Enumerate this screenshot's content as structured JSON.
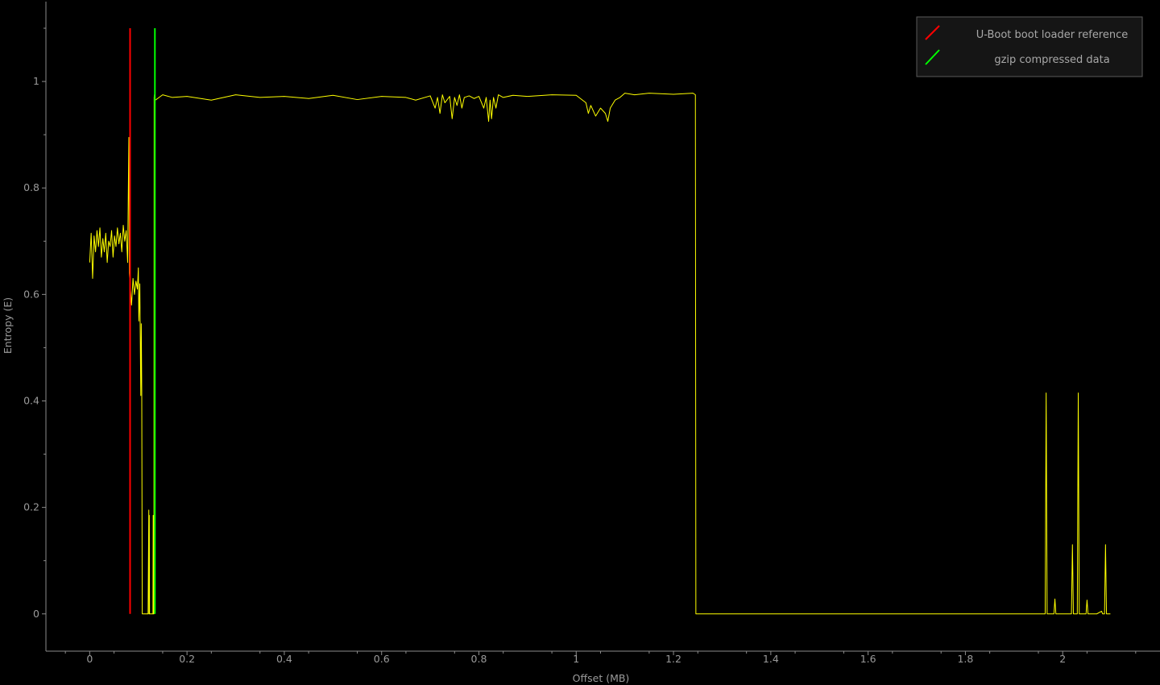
{
  "chart_data": {
    "type": "line",
    "title": "",
    "xlabel": "Offset (MB)",
    "ylabel": "Entropy (E)",
    "xlim": [
      -0.09,
      2.2
    ],
    "ylim": [
      -0.07,
      1.15
    ],
    "xticks": [
      0,
      0.2,
      0.4,
      0.6,
      0.8,
      1,
      1.2,
      1.4,
      1.6,
      1.8,
      2
    ],
    "xtick_labels": [
      "0",
      "0.2",
      "0.4",
      "0.6",
      "0.8",
      "1",
      "1.2",
      "1.4",
      "1.6",
      "1.8",
      "2"
    ],
    "yticks": [
      0,
      0.2,
      0.4,
      0.6,
      0.8,
      1
    ],
    "ytick_labels": [
      "0",
      "0.2",
      "0.4",
      "0.6",
      "0.8",
      "1"
    ],
    "legend_position": "top-right",
    "series": [
      {
        "name": "entropy",
        "color": "#ffff00",
        "x": [
          0,
          0.003,
          0.006,
          0.009,
          0.012,
          0.015,
          0.018,
          0.021,
          0.024,
          0.027,
          0.03,
          0.033,
          0.036,
          0.039,
          0.042,
          0.045,
          0.048,
          0.051,
          0.054,
          0.057,
          0.06,
          0.063,
          0.066,
          0.069,
          0.072,
          0.075,
          0.078,
          0.0805,
          0.0815,
          0.083,
          0.086,
          0.089,
          0.092,
          0.095,
          0.098,
          0.1,
          0.101,
          0.103,
          0.105,
          0.106,
          0.107,
          0.108,
          0.115,
          0.12,
          0.1215,
          0.122,
          0.1225,
          0.123,
          0.13,
          0.1305,
          0.131,
          0.132,
          0.1325,
          0.133,
          0.135,
          0.15,
          0.17,
          0.2,
          0.25,
          0.3,
          0.35,
          0.4,
          0.45,
          0.5,
          0.55,
          0.6,
          0.65,
          0.67,
          0.7,
          0.71,
          0.715,
          0.72,
          0.725,
          0.73,
          0.74,
          0.745,
          0.75,
          0.755,
          0.76,
          0.765,
          0.77,
          0.78,
          0.79,
          0.8,
          0.81,
          0.815,
          0.82,
          0.823,
          0.826,
          0.83,
          0.835,
          0.84,
          0.85,
          0.87,
          0.9,
          0.95,
          1,
          1.02,
          1.025,
          1.03,
          1.04,
          1.05,
          1.06,
          1.065,
          1.07,
          1.08,
          1.09,
          1.1,
          1.12,
          1.15,
          1.2,
          1.24,
          1.245,
          1.246,
          1.248,
          1.3,
          1.5,
          1.7,
          1.9,
          1.96,
          1.964,
          1.966,
          1.968,
          1.97,
          1.98,
          1.982,
          1.984,
          1.986,
          2.0,
          2.015,
          2.016,
          2.018,
          2.02,
          2.022,
          2.024,
          2.026,
          2.03,
          2.032,
          2.034,
          2.036,
          2.04,
          2.048,
          2.05,
          2.052,
          2.07,
          2.08,
          2.082,
          2.084,
          2.086,
          2.088,
          2.09,
          2.098
        ],
        "y": [
          0.66,
          0.715,
          0.63,
          0.71,
          0.68,
          0.72,
          0.69,
          0.725,
          0.67,
          0.705,
          0.68,
          0.715,
          0.66,
          0.7,
          0.69,
          0.72,
          0.67,
          0.71,
          0.69,
          0.725,
          0.695,
          0.715,
          0.68,
          0.73,
          0.7,
          0.72,
          0.66,
          0.895,
          0.64,
          0.62,
          0.58,
          0.63,
          0.6,
          0.625,
          0.61,
          0.65,
          0.55,
          0.62,
          0.41,
          0.545,
          0.42,
          0.0,
          0.0,
          0.0,
          0.195,
          0.0,
          0.185,
          0.0,
          0.0,
          0.185,
          0.0,
          0.0,
          0.97,
          0.975,
          0.965,
          0.975,
          0.97,
          0.972,
          0.965,
          0.975,
          0.97,
          0.972,
          0.968,
          0.974,
          0.966,
          0.972,
          0.97,
          0.965,
          0.973,
          0.95,
          0.97,
          0.94,
          0.975,
          0.96,
          0.972,
          0.93,
          0.97,
          0.955,
          0.975,
          0.95,
          0.97,
          0.973,
          0.968,
          0.972,
          0.95,
          0.97,
          0.925,
          0.965,
          0.93,
          0.97,
          0.95,
          0.975,
          0.97,
          0.974,
          0.972,
          0.975,
          0.974,
          0.96,
          0.94,
          0.955,
          0.935,
          0.95,
          0.94,
          0.925,
          0.95,
          0.965,
          0.97,
          0.978,
          0.975,
          0.978,
          0.976,
          0.978,
          0.975,
          0.0,
          0.0,
          0.0,
          0.0,
          0.0,
          0.0,
          0.0,
          0.0,
          0.415,
          0.0,
          0.0,
          0.0,
          0.0,
          0.028,
          0.0,
          0.0,
          0.0,
          0.0,
          0.0,
          0.13,
          0.0,
          0.0,
          0.0,
          0.0,
          0.415,
          0.0,
          0.0,
          0.0,
          0.0,
          0.026,
          0.0,
          0.0,
          0.005,
          0.0,
          0.0,
          0.0,
          0.13,
          0.0,
          0.0
        ]
      }
    ],
    "markers": [
      {
        "name": "U-Boot boot loader reference",
        "x": 0.083,
        "color": "#ff0000",
        "y_range": [
          0,
          1.1
        ]
      },
      {
        "name": "gzip compressed data",
        "x": 0.134,
        "color": "#00ff00",
        "y_range": [
          0,
          1.1
        ]
      }
    ],
    "legend": [
      {
        "label": "U-Boot boot loader reference",
        "color": "#ff0000"
      },
      {
        "label": "gzip compressed data",
        "color": "#00ff00"
      }
    ]
  }
}
